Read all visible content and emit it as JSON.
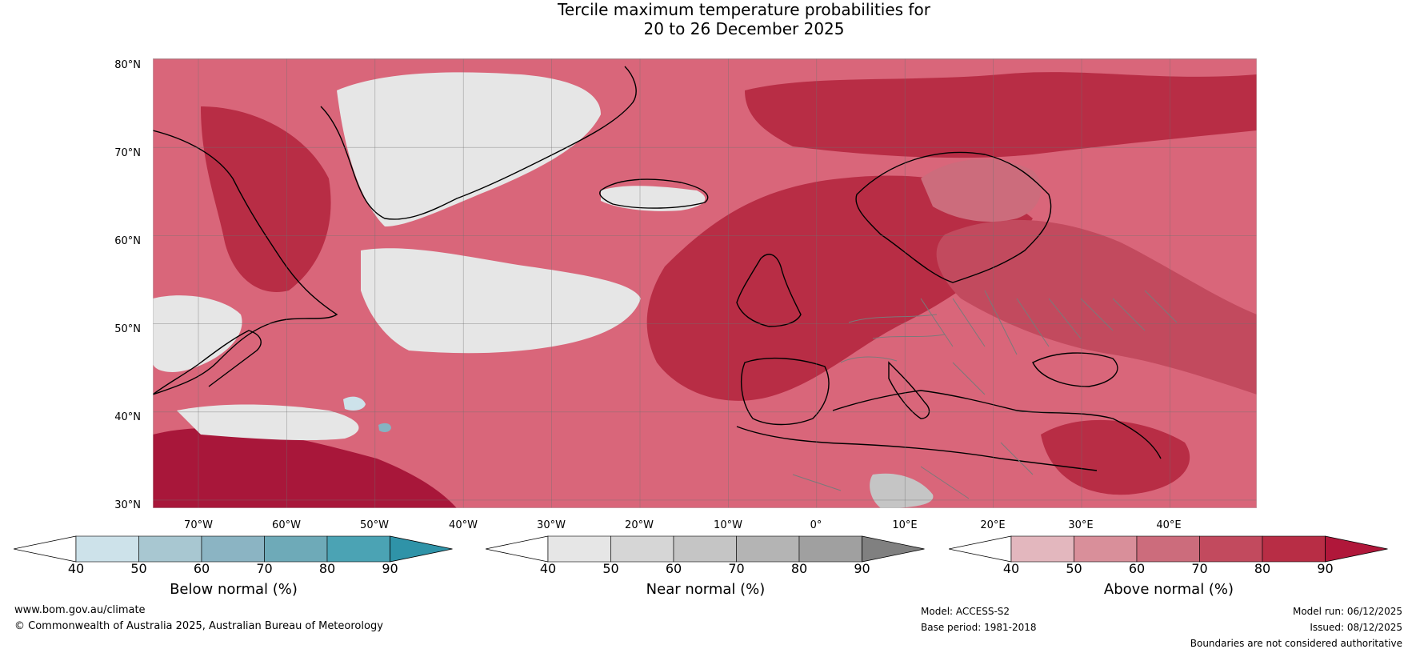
{
  "title": {
    "line1": "Tercile maximum temperature probabilities for",
    "line2": "20 to 26 December 2025"
  },
  "map": {
    "lat_labels": [
      "80°N",
      "70°N",
      "60°N",
      "50°N",
      "40°N",
      "30°N"
    ],
    "lon_labels": [
      "70°W",
      "60°W",
      "50°W",
      "40°W",
      "30°W",
      "20°W",
      "10°W",
      "0°",
      "10°E",
      "20°E",
      "30°E",
      "40°E"
    ],
    "colors": {
      "ocean_base": "#d9667a",
      "above_40": "#e3b7be",
      "above_50": "#d98f9a",
      "above_60": "#cc6c7c",
      "above_70": "#c24a5e",
      "above_80": "#b82d45",
      "above_90": "#a8173a",
      "near_40": "#e6e6e6",
      "near_50": "#d6d6d6",
      "near_60": "#c5c5c5",
      "below_40": "#cde2ea",
      "below_60": "#86b3c2",
      "coast": "#000000",
      "border": "#7a7a7a",
      "grid": "#707070"
    }
  },
  "colorbars": [
    {
      "label": "Below normal (%)",
      "ticks": [
        "40",
        "50",
        "60",
        "70",
        "80",
        "90"
      ],
      "colors": [
        "#ffffff",
        "#cde2ea",
        "#a8c7d1",
        "#8bb4c3",
        "#6eaab8",
        "#4ba3b4",
        "#2f93a8"
      ]
    },
    {
      "label": "Near normal (%)",
      "ticks": [
        "40",
        "50",
        "60",
        "70",
        "80",
        "90"
      ],
      "colors": [
        "#ffffff",
        "#e6e6e6",
        "#d6d6d6",
        "#c5c5c5",
        "#b4b4b4",
        "#a0a0a0",
        "#808080"
      ]
    },
    {
      "label": "Above normal (%)",
      "ticks": [
        "40",
        "50",
        "60",
        "70",
        "80",
        "90"
      ],
      "colors": [
        "#ffffff",
        "#e3b7be",
        "#d98f9a",
        "#cc6c7c",
        "#c24a5e",
        "#b82d45",
        "#b0173a"
      ]
    }
  ],
  "footer": {
    "website": "www.bom.gov.au/climate",
    "copyright": "© Commonwealth of Australia 2025, Australian Bureau of Meteorology",
    "model": "Model: ACCESS-S2",
    "base_period": "Base period: 1981-2018",
    "model_run": "Model run: 06/12/2025",
    "issued": "Issued: 08/12/2025",
    "disclaimer": "Boundaries are not considered authoritative"
  }
}
